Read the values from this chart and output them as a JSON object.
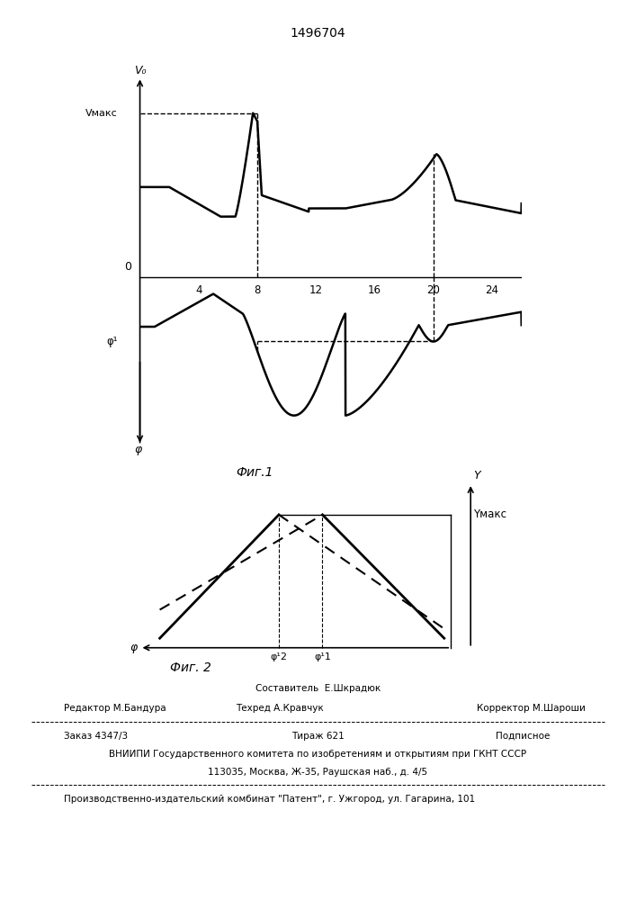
{
  "patent_number": "1496704",
  "fig1_title": "Фиг.1",
  "fig2_title": "Фиг. 2",
  "fig1_xlabel_ticks": [
    4,
    8,
    12,
    16,
    20,
    24
  ],
  "fig1_v0_label": "V₀",
  "fig1_vmaks_label": "Vмакс",
  "fig1_zero_label": "0",
  "fig1_phi_label": "φ",
  "fig1_phi1_label": "φ¹",
  "fig2_y_label": "Y",
  "fig2_ymaks_label": "Yмакс",
  "fig2_phi_label": "φ",
  "fig2_phi2_label": "φ¹2",
  "fig2_phi1_label": "φ¹1",
  "footer_line1": "Составитель  Е.Шкрадюк",
  "footer_editor": "Редактор М.Бандура",
  "footer_techred": "Техред А.Кравчук",
  "footer_corrector": "Корректор М.Шароши",
  "footer_order": "Заказ 4347/3",
  "footer_tirazh": "Тираж 621",
  "footer_podpis": "Подписное",
  "footer_vniiipi": "ВНИИПИ Государственного комитета по изобретениям и открытиям при ГКНТ СССР",
  "footer_address": "113035, Москва, Ж-35, Раушская наб., д. 4/5",
  "footer_patent": "Производственно-издательский комбинат \"Патент\", г. Ужгород, ул. Гагарина, 101"
}
